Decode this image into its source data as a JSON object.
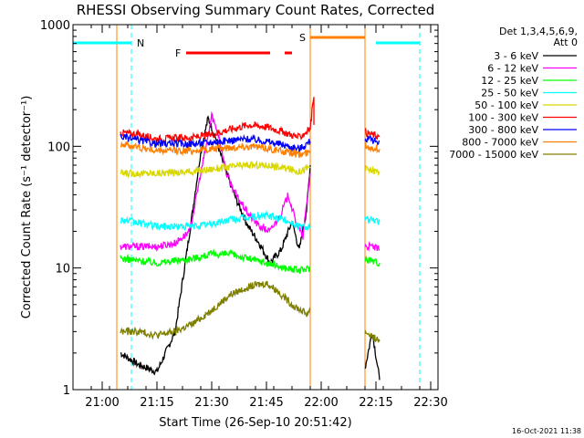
{
  "chart_data": {
    "type": "line",
    "title": "RHESSI Observing Summary Count Rates, Corrected",
    "xlabel": "Start Time (26-Sep-10 20:51:42)",
    "ylabel": "Corrected Count Rate (s⁻¹ detector⁻¹)",
    "y_scale": "log",
    "ylim": [
      1,
      1000
    ],
    "xlim": [
      "20:52",
      "22:32"
    ],
    "x_ticks": [
      "21:00",
      "21:15",
      "21:30",
      "21:45",
      "22:00",
      "22:15",
      "22:30"
    ],
    "y_ticks": [
      "1",
      "10",
      "100",
      "1000"
    ],
    "detectors_label": "Det 1,3,4,5,6,9,",
    "attenuator_label": "Att 0",
    "timestamp": "16-Oct-2021 11:38",
    "flags": [
      {
        "label": "N",
        "color": "#00ffff",
        "segments": [
          [
            "20:52",
            "21:08"
          ],
          [
            "22:15",
            "22:27"
          ]
        ]
      },
      {
        "label": "S",
        "color": "#ff8000",
        "segments": [
          [
            "21:57",
            "22:12"
          ]
        ]
      },
      {
        "label": "F",
        "color": "#ff0000",
        "segments": [
          [
            "21:23",
            "21:46"
          ],
          [
            "21:50",
            "21:52"
          ]
        ]
      }
    ],
    "markers": [
      {
        "color": "#00ffff",
        "times": [
          "20:52",
          "21:08",
          "22:12",
          "22:27"
        ]
      },
      {
        "color": "#ff8000",
        "times": [
          "21:04",
          "21:57",
          "22:12"
        ]
      }
    ],
    "series": [
      {
        "name": "3 - 6 keV",
        "color": "#000000",
        "segments": [
          [
            [
              "21:05",
              2
            ],
            [
              "21:10",
              1.6
            ],
            [
              "21:15",
              1.4
            ],
            [
              "21:20",
              3
            ],
            [
              "21:24",
              20
            ],
            [
              "21:27",
              90
            ],
            [
              "21:29",
              170
            ],
            [
              "21:31",
              120
            ],
            [
              "21:34",
              60
            ],
            [
              "21:37",
              35
            ],
            [
              "21:40",
              22
            ],
            [
              "21:43",
              16
            ],
            [
              "21:46",
              11
            ],
            [
              "21:49",
              14
            ],
            [
              "21:52",
              24
            ],
            [
              "21:54",
              14
            ],
            [
              "21:56",
              30
            ],
            [
              "21:57",
              70
            ]
          ],
          [
            [
              "22:12",
              1.5
            ],
            [
              "22:14",
              3
            ],
            [
              "22:16",
              1.2
            ]
          ]
        ]
      },
      {
        "name": "6 - 12 keV",
        "color": "#ff00ff",
        "segments": [
          [
            [
              "21:05",
              15
            ],
            [
              "21:10",
              15
            ],
            [
              "21:15",
              15
            ],
            [
              "21:20",
              16
            ],
            [
              "21:24",
              20
            ],
            [
              "21:27",
              60
            ],
            [
              "21:29",
              120
            ],
            [
              "21:30",
              180
            ],
            [
              "21:32",
              120
            ],
            [
              "21:34",
              60
            ],
            [
              "21:37",
              38
            ],
            [
              "21:40",
              28
            ],
            [
              "21:43",
              22
            ],
            [
              "21:46",
              20
            ],
            [
              "21:49",
              28
            ],
            [
              "21:51",
              40
            ],
            [
              "21:53",
              24
            ],
            [
              "21:55",
              18
            ],
            [
              "21:57",
              60
            ]
          ],
          [
            [
              "22:12",
              15
            ],
            [
              "22:14",
              15
            ],
            [
              "22:16",
              14
            ]
          ]
        ]
      },
      {
        "name": "12 - 25 keV",
        "color": "#00ff00",
        "segments": [
          [
            [
              "21:05",
              12
            ],
            [
              "21:15",
              11
            ],
            [
              "21:25",
              12
            ],
            [
              "21:30",
              13
            ],
            [
              "21:35",
              13
            ],
            [
              "21:40",
              12
            ],
            [
              "21:45",
              11
            ],
            [
              "21:50",
              10
            ],
            [
              "21:54",
              9.5
            ],
            [
              "21:57",
              10
            ]
          ],
          [
            [
              "22:12",
              12
            ],
            [
              "22:16",
              11
            ]
          ]
        ]
      },
      {
        "name": "25 - 50 keV",
        "color": "#00ffff",
        "segments": [
          [
            [
              "21:05",
              25
            ],
            [
              "21:15",
              22
            ],
            [
              "21:25",
              22
            ],
            [
              "21:30",
              23
            ],
            [
              "21:35",
              25
            ],
            [
              "21:40",
              26
            ],
            [
              "21:45",
              27
            ],
            [
              "21:50",
              25
            ],
            [
              "21:54",
              22
            ],
            [
              "21:57",
              22
            ]
          ],
          [
            [
              "22:12",
              25
            ],
            [
              "22:16",
              24
            ]
          ]
        ]
      },
      {
        "name": "50 - 100 keV",
        "color": "#d8d800",
        "segments": [
          [
            [
              "21:05",
              60
            ],
            [
              "21:15",
              60
            ],
            [
              "21:25",
              62
            ],
            [
              "21:30",
              65
            ],
            [
              "21:35",
              68
            ],
            [
              "21:40",
              70
            ],
            [
              "21:45",
              70
            ],
            [
              "21:50",
              66
            ],
            [
              "21:54",
              62
            ],
            [
              "21:57",
              68
            ]
          ],
          [
            [
              "22:12",
              65
            ],
            [
              "22:16",
              62
            ]
          ]
        ]
      },
      {
        "name": "100 - 300 keV",
        "color": "#ff0000",
        "segments": [
          [
            [
              "21:05",
              130
            ],
            [
              "21:10",
              125
            ],
            [
              "21:15",
              115
            ],
            [
              "21:25",
              118
            ],
            [
              "21:30",
              125
            ],
            [
              "21:35",
              138
            ],
            [
              "21:40",
              150
            ],
            [
              "21:45",
              145
            ],
            [
              "21:50",
              130
            ],
            [
              "21:54",
              118
            ],
            [
              "21:57",
              140
            ],
            [
              "21:58",
              270
            ],
            [
              "21:58",
              150
            ]
          ],
          [
            [
              "22:12",
              130
            ],
            [
              "22:16",
              120
            ]
          ]
        ]
      },
      {
        "name": "300 - 800 keV",
        "color": "#0000ff",
        "segments": [
          [
            [
              "21:05",
              120
            ],
            [
              "21:10",
              112
            ],
            [
              "21:15",
              105
            ],
            [
              "21:25",
              105
            ],
            [
              "21:30",
              108
            ],
            [
              "21:35",
              112
            ],
            [
              "21:40",
              115
            ],
            [
              "21:45",
              110
            ],
            [
              "21:50",
              102
            ],
            [
              "21:54",
              95
            ],
            [
              "21:57",
              110
            ]
          ],
          [
            [
              "22:12",
              115
            ],
            [
              "22:16",
              110
            ]
          ]
        ]
      },
      {
        "name": "800 - 7000 keV",
        "color": "#ff8000",
        "segments": [
          [
            [
              "21:05",
              105
            ],
            [
              "21:10",
              98
            ],
            [
              "21:15",
              92
            ],
            [
              "21:25",
              92
            ],
            [
              "21:30",
              95
            ],
            [
              "21:35",
              98
            ],
            [
              "21:40",
              100
            ],
            [
              "21:45",
              97
            ],
            [
              "21:50",
              90
            ],
            [
              "21:54",
              85
            ],
            [
              "21:57",
              90
            ]
          ],
          [
            [
              "22:12",
              100
            ],
            [
              "22:16",
              95
            ]
          ]
        ]
      },
      {
        "name": "7000 - 15000 keV",
        "color": "#808000",
        "segments": [
          [
            [
              "21:05",
              3
            ],
            [
              "21:10",
              3
            ],
            [
              "21:15",
              2.8
            ],
            [
              "21:20",
              3
            ],
            [
              "21:25",
              3.5
            ],
            [
              "21:30",
              4.5
            ],
            [
              "21:35",
              6
            ],
            [
              "21:40",
              7
            ],
            [
              "21:45",
              7.5
            ],
            [
              "21:48",
              6.5
            ],
            [
              "21:52",
              5
            ],
            [
              "21:56",
              4.2
            ],
            [
              "21:57",
              4.5
            ]
          ],
          [
            [
              "22:12",
              3
            ],
            [
              "22:16",
              2.5
            ]
          ]
        ]
      }
    ]
  }
}
